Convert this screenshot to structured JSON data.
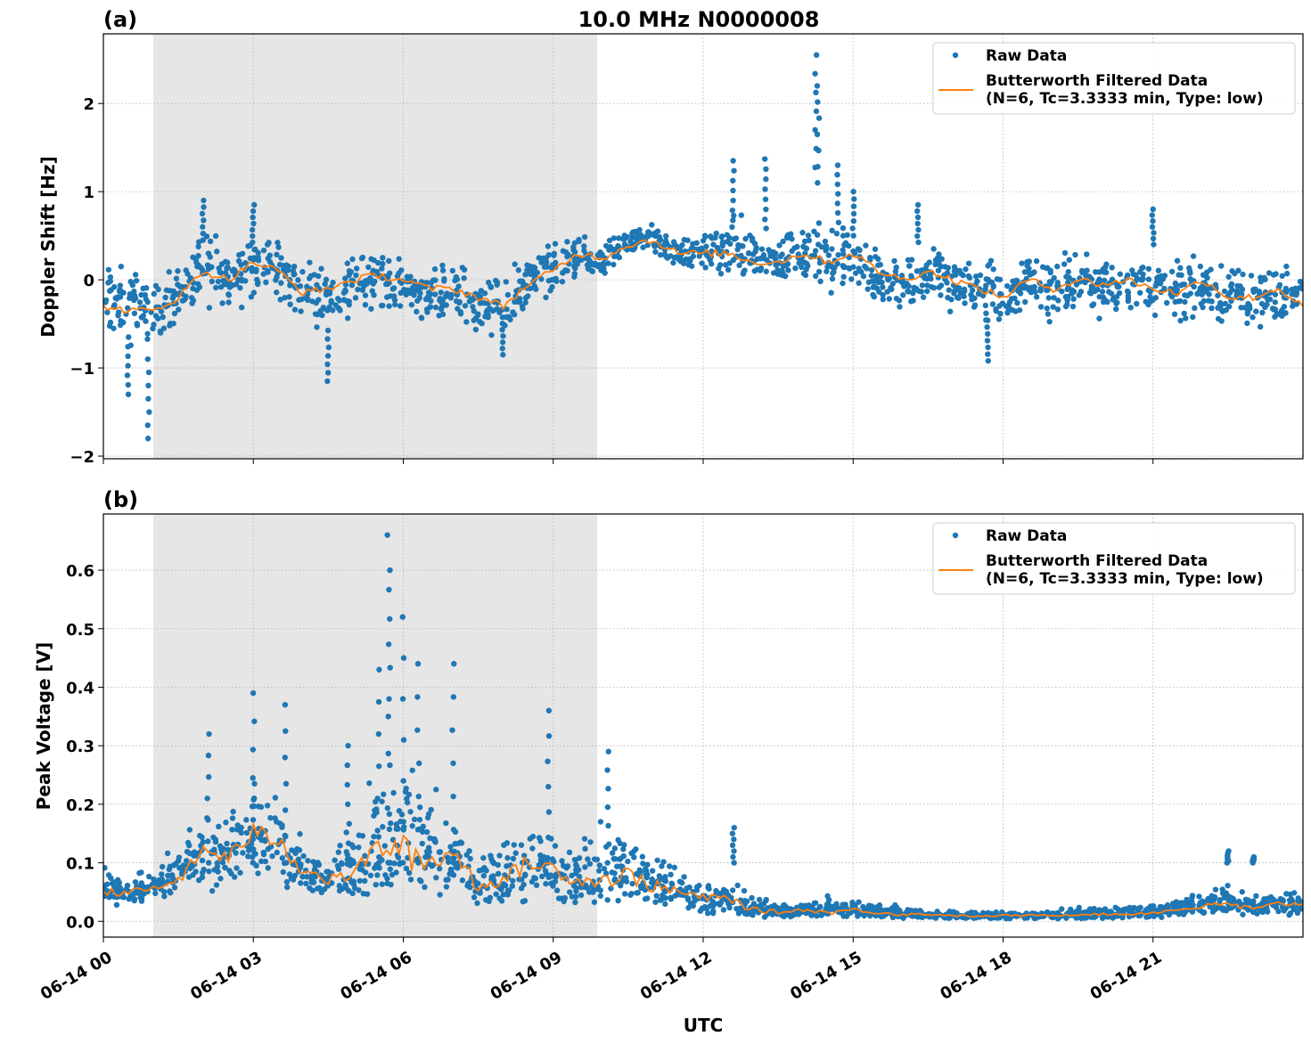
{
  "chart_data": [
    {
      "type": "scatter",
      "panel_label": "(a)",
      "title": "10.0 MHz N0000008",
      "xlabel": "",
      "ylabel": "Doppler Shift [Hz]",
      "xlim_hours_utc": [
        0,
        24
      ],
      "ylim": [
        -2.03,
        2.79
      ],
      "yticks": [
        -2,
        -1,
        0,
        1,
        2
      ],
      "ytick_labels": [
        "−2",
        "−1",
        "0",
        "1",
        "2"
      ],
      "grid": true,
      "legend_placement": "top-right",
      "legend": [
        "Raw Data",
        "Butterworth Filtered Data",
        "(N=6, Tc=3.3333 min, Type: low)"
      ],
      "shaded_span_hours_utc": [
        1.0,
        9.88
      ],
      "hours": [
        0,
        0.5,
        1,
        1.5,
        2,
        2.5,
        3,
        3.5,
        4,
        4.5,
        5,
        5.5,
        6,
        6.5,
        7,
        7.5,
        8,
        8.5,
        9,
        9.5,
        10,
        10.5,
        11,
        11.5,
        12,
        12.5,
        13,
        13.5,
        14,
        14.5,
        15,
        15.5,
        16,
        16.5,
        17,
        17.5,
        18,
        18.5,
        19,
        19.5,
        20,
        20.5,
        21,
        21.5,
        22,
        22.5,
        23,
        23.5,
        24
      ],
      "series": [
        {
          "name": "Butterworth Filtered Data",
          "color": "#ff7f0e",
          "kind": "line",
          "values": [
            -0.3,
            -0.35,
            -0.35,
            -0.2,
            0.1,
            0.0,
            0.2,
            0.1,
            -0.15,
            -0.1,
            0.0,
            0.05,
            0.0,
            -0.1,
            -0.1,
            -0.2,
            -0.3,
            -0.05,
            0.1,
            0.3,
            0.25,
            0.4,
            0.45,
            0.3,
            0.3,
            0.3,
            0.2,
            0.2,
            0.3,
            0.2,
            0.3,
            0.1,
            0.0,
            0.1,
            0.0,
            -0.1,
            -0.2,
            0.0,
            -0.1,
            0.0,
            -0.05,
            0.0,
            -0.1,
            -0.15,
            0.0,
            -0.2,
            -0.2,
            -0.1,
            -0.3
          ]
        },
        {
          "name": "Raw Data",
          "color": "#1f77b4",
          "kind": "scatter-envelope",
          "lower": [
            -0.8,
            -0.9,
            -0.8,
            -0.6,
            -0.4,
            -0.5,
            -0.3,
            -0.4,
            -0.6,
            -0.6,
            -0.5,
            -0.4,
            -0.4,
            -0.6,
            -0.6,
            -0.7,
            -0.8,
            -0.5,
            -0.3,
            -0.1,
            -0.1,
            0.2,
            0.25,
            0.05,
            0.0,
            -0.1,
            -0.2,
            -0.2,
            -0.1,
            -0.3,
            -0.2,
            -0.4,
            -0.5,
            -0.4,
            -0.5,
            -0.6,
            -0.7,
            -0.5,
            -0.6,
            -0.5,
            -0.5,
            -0.5,
            -0.5,
            -0.6,
            -0.5,
            -0.7,
            -0.7,
            -0.6,
            -0.6
          ],
          "upper": [
            0.3,
            0.3,
            0.1,
            0.3,
            0.7,
            0.5,
            0.7,
            0.6,
            0.3,
            0.3,
            0.4,
            0.4,
            0.3,
            0.2,
            0.3,
            0.2,
            0.1,
            0.4,
            0.5,
            0.6,
            0.5,
            0.65,
            0.7,
            0.5,
            0.6,
            0.9,
            0.7,
            0.6,
            0.9,
            0.7,
            0.7,
            0.5,
            0.5,
            0.5,
            0.4,
            0.4,
            0.3,
            0.5,
            0.4,
            0.4,
            0.4,
            0.4,
            0.3,
            0.3,
            0.4,
            0.2,
            0.3,
            0.3,
            0.2
          ],
          "outliers": [
            [
              0.9,
              -1.8
            ],
            [
              0.5,
              -1.3
            ],
            [
              2.0,
              0.9
            ],
            [
              3.0,
              0.85
            ],
            [
              4.5,
              -1.15
            ],
            [
              8.0,
              -0.85
            ],
            [
              12.6,
              1.35
            ],
            [
              13.25,
              1.37
            ],
            [
              14.25,
              2.55
            ],
            [
              14.3,
              2.2
            ],
            [
              14.7,
              1.3
            ],
            [
              15.0,
              1.0
            ],
            [
              16.3,
              0.85
            ],
            [
              17.7,
              -0.92
            ],
            [
              21.0,
              0.8
            ]
          ]
        }
      ]
    },
    {
      "type": "scatter",
      "panel_label": "(b)",
      "xlabel": "UTC",
      "ylabel": "Peak Voltage [V]",
      "xlim_hours_utc": [
        0,
        24
      ],
      "ylim": [
        -0.027,
        0.696
      ],
      "yticks": [
        0.0,
        0.1,
        0.2,
        0.3,
        0.4,
        0.5,
        0.6
      ],
      "ytick_labels": [
        "0.0",
        "0.1",
        "0.2",
        "0.3",
        "0.4",
        "0.5",
        "0.6"
      ],
      "xtick_labels": [
        "06-14 00",
        "06-14 03",
        "06-14 06",
        "06-14 09",
        "06-14 12",
        "06-14 15",
        "06-14 18",
        "06-14 21"
      ],
      "xticks_hours": [
        0,
        3,
        6,
        9,
        12,
        15,
        18,
        21
      ],
      "grid": true,
      "legend_placement": "top-right",
      "legend": [
        "Raw Data",
        "Butterworth Filtered Data",
        "(N=6, Tc=3.3333 min, Type: low)"
      ],
      "shaded_span_hours_utc": [
        1.0,
        9.88
      ],
      "hours": [
        0,
        0.5,
        1,
        1.5,
        2,
        2.5,
        3,
        3.5,
        4,
        4.5,
        5,
        5.5,
        6,
        6.5,
        7,
        7.5,
        8,
        8.5,
        9,
        9.5,
        10,
        10.5,
        11,
        11.5,
        12,
        12.5,
        13,
        13.5,
        14,
        14.5,
        15,
        15.5,
        16,
        16.5,
        17,
        17.5,
        18,
        18.5,
        19,
        19.5,
        20,
        20.5,
        21,
        21.5,
        22,
        22.5,
        23,
        23.5,
        24
      ],
      "series": [
        {
          "name": "Butterworth Filtered Data",
          "color": "#ff7f0e",
          "kind": "line",
          "values": [
            0.05,
            0.05,
            0.055,
            0.07,
            0.12,
            0.11,
            0.15,
            0.14,
            0.09,
            0.07,
            0.08,
            0.13,
            0.12,
            0.1,
            0.12,
            0.06,
            0.07,
            0.1,
            0.09,
            0.07,
            0.07,
            0.08,
            0.06,
            0.05,
            0.04,
            0.04,
            0.02,
            0.015,
            0.02,
            0.015,
            0.02,
            0.015,
            0.012,
            0.012,
            0.01,
            0.008,
            0.01,
            0.01,
            0.01,
            0.012,
            0.012,
            0.012,
            0.015,
            0.02,
            0.025,
            0.03,
            0.02,
            0.03,
            0.03
          ]
        },
        {
          "name": "Raw Data",
          "color": "#1f77b4",
          "kind": "scatter-envelope",
          "lower": [
            0.025,
            0.025,
            0.03,
            0.04,
            0.05,
            0.05,
            0.07,
            0.06,
            0.04,
            0.03,
            0.03,
            0.04,
            0.04,
            0.03,
            0.04,
            0.02,
            0.02,
            0.03,
            0.03,
            0.02,
            0.02,
            0.03,
            0.02,
            0.015,
            0.01,
            0.01,
            0.005,
            0.005,
            0.005,
            0.005,
            0.005,
            0.005,
            0.004,
            0.004,
            0.003,
            0.003,
            0.003,
            0.003,
            0.003,
            0.004,
            0.004,
            0.004,
            0.005,
            0.006,
            0.008,
            0.01,
            0.008,
            0.01,
            0.01
          ],
          "upper": [
            0.1,
            0.09,
            0.1,
            0.15,
            0.22,
            0.2,
            0.27,
            0.26,
            0.14,
            0.14,
            0.2,
            0.3,
            0.35,
            0.25,
            0.22,
            0.12,
            0.18,
            0.2,
            0.18,
            0.15,
            0.2,
            0.18,
            0.15,
            0.12,
            0.08,
            0.08,
            0.05,
            0.04,
            0.04,
            0.05,
            0.04,
            0.04,
            0.03,
            0.025,
            0.02,
            0.02,
            0.02,
            0.02,
            0.025,
            0.025,
            0.025,
            0.03,
            0.03,
            0.05,
            0.06,
            0.07,
            0.05,
            0.06,
            0.06
          ],
          "outliers": [
            [
              2.1,
              0.32
            ],
            [
              3.0,
              0.39
            ],
            [
              3.65,
              0.37
            ],
            [
              4.9,
              0.3
            ],
            [
              5.5,
              0.43
            ],
            [
              5.7,
              0.66
            ],
            [
              5.72,
              0.6
            ],
            [
              6.0,
              0.52
            ],
            [
              6.3,
              0.44
            ],
            [
              7.0,
              0.44
            ],
            [
              8.9,
              0.36
            ],
            [
              10.1,
              0.29
            ],
            [
              12.6,
              0.16
            ],
            [
              22.5,
              0.12
            ],
            [
              23.0,
              0.11
            ]
          ]
        }
      ]
    }
  ]
}
